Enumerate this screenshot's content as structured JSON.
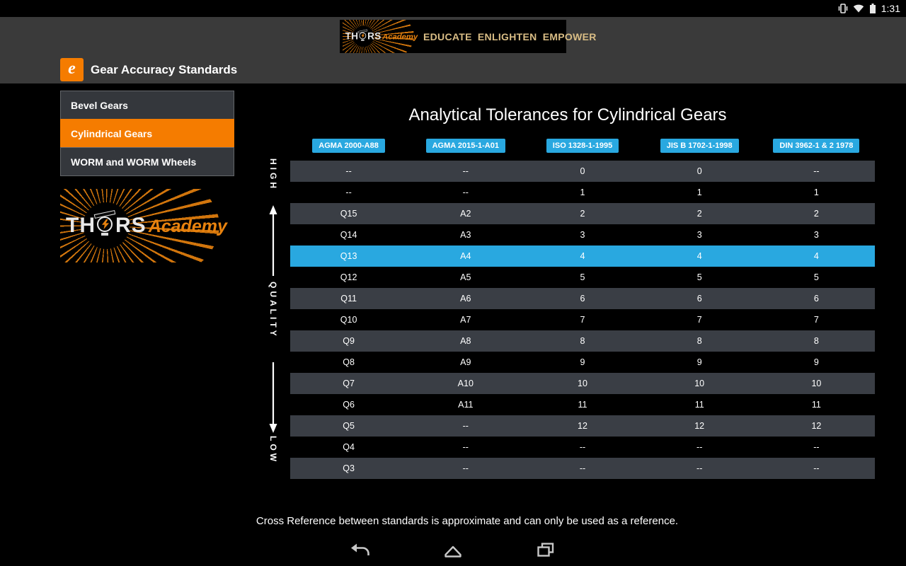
{
  "status_bar": {
    "time": "1:31"
  },
  "header": {
    "app_title": "Gear Accuracy Standards",
    "app_icon_glyph": "e",
    "brand": {
      "th": "TH",
      "rs": "RS",
      "academy": "Academy"
    },
    "tagline": "EDUCATE ENLIGHTEN EMPOWER"
  },
  "sidebar": {
    "items": [
      {
        "label": "Bevel Gears",
        "selected": false
      },
      {
        "label": "Cylindrical Gears",
        "selected": true
      },
      {
        "label": "WORM and WORM Wheels",
        "selected": false
      }
    ]
  },
  "main": {
    "title": "Analytical Tolerances for Cylindrical Gears",
    "axis": {
      "high": "HIGH",
      "middle": "QUALITY",
      "low": "LOW"
    },
    "table": {
      "headers": [
        "AGMA 2000-A88",
        "AGMA 2015-1-A01",
        "ISO 1328-1-1995",
        "JIS B 1702-1-1998",
        "DIN 3962-1 & 2 1978"
      ],
      "rows": [
        {
          "cells": [
            "--",
            "--",
            "0",
            "0",
            "--"
          ],
          "highlight": false
        },
        {
          "cells": [
            "--",
            "--",
            "1",
            "1",
            "1"
          ],
          "highlight": false
        },
        {
          "cells": [
            "Q15",
            "A2",
            "2",
            "2",
            "2"
          ],
          "highlight": false
        },
        {
          "cells": [
            "Q14",
            "A3",
            "3",
            "3",
            "3"
          ],
          "highlight": false
        },
        {
          "cells": [
            "Q13",
            "A4",
            "4",
            "4",
            "4"
          ],
          "highlight": true
        },
        {
          "cells": [
            "Q12",
            "A5",
            "5",
            "5",
            "5"
          ],
          "highlight": false
        },
        {
          "cells": [
            "Q11",
            "A6",
            "6",
            "6",
            "6"
          ],
          "highlight": false
        },
        {
          "cells": [
            "Q10",
            "A7",
            "7",
            "7",
            "7"
          ],
          "highlight": false
        },
        {
          "cells": [
            "Q9",
            "A8",
            "8",
            "8",
            "8"
          ],
          "highlight": false
        },
        {
          "cells": [
            "Q8",
            "A9",
            "9",
            "9",
            "9"
          ],
          "highlight": false
        },
        {
          "cells": [
            "Q7",
            "A10",
            "10",
            "10",
            "10"
          ],
          "highlight": false
        },
        {
          "cells": [
            "Q6",
            "A11",
            "11",
            "11",
            "11"
          ],
          "highlight": false
        },
        {
          "cells": [
            "Q5",
            "--",
            "12",
            "12",
            "12"
          ],
          "highlight": false
        },
        {
          "cells": [
            "Q4",
            "--",
            "--",
            "--",
            "--"
          ],
          "highlight": false
        },
        {
          "cells": [
            "Q3",
            "--",
            "--",
            "--",
            "--"
          ],
          "highlight": false
        }
      ]
    },
    "footnote": "Cross Reference between standards is approximate and can only be used as a reference."
  },
  "icons": {
    "status": [
      "vibrate-icon",
      "wifi-icon",
      "battery-icon"
    ],
    "nav": [
      "back-icon",
      "home-icon",
      "recents-icon"
    ],
    "logo": [
      "sunburst-rays-icon",
      "lightbulb-icon",
      "lightning-bolt-icon",
      "graduation-cap-icon"
    ]
  },
  "colors": {
    "accent_orange": "#F57C00",
    "logo_orange": "#E8820E",
    "table_blue": "#29A8E0",
    "row_dark": "#3A3E45",
    "header_band": "#3A3A3A",
    "tagline_tan": "#D9BD85"
  }
}
